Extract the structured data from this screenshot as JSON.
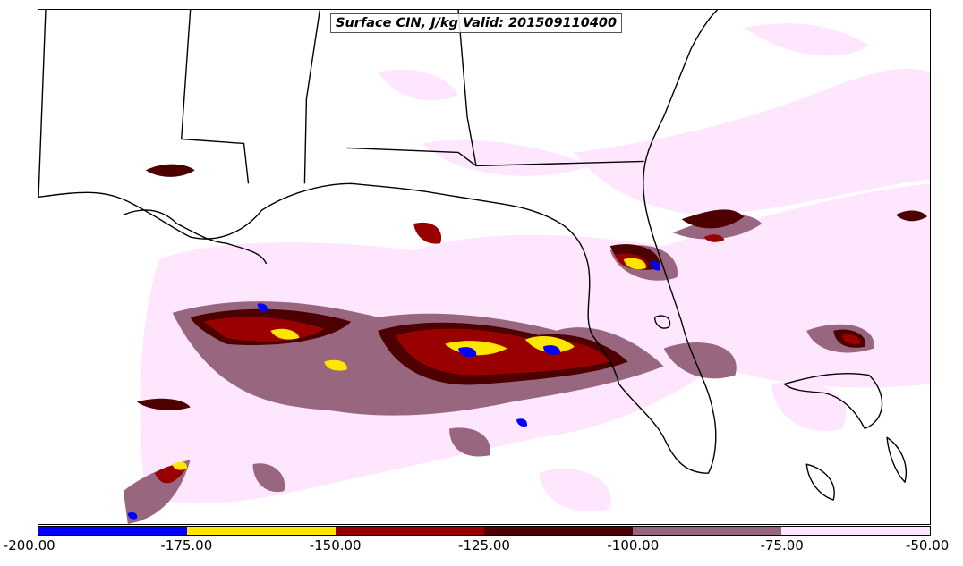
{
  "map": {
    "title": "Surface CIN, J/kg Valid: 201509110400",
    "variable": "Surface CIN",
    "units": "J/kg",
    "valid_time": "201509110400",
    "region": "Gulf of Mexico / Southeastern US",
    "background_color": "#ffffff",
    "coastline_color": "#000000"
  },
  "colorbar": {
    "tick_labels": [
      "-200.00",
      "-175.00",
      "-150.00",
      "-125.00",
      "-100.00",
      "-75.00",
      "-50.00"
    ],
    "bins": [
      {
        "from": -200,
        "to": -175,
        "color": "#0000ff"
      },
      {
        "from": -175,
        "to": -150,
        "color": "#ffe600"
      },
      {
        "from": -150,
        "to": -125,
        "color": "#990000"
      },
      {
        "from": -125,
        "to": -100,
        "color": "#4d0000"
      },
      {
        "from": -100,
        "to": -75,
        "color": "#996680"
      },
      {
        "from": -75,
        "to": -50,
        "color": "#ffe6ff"
      }
    ]
  }
}
